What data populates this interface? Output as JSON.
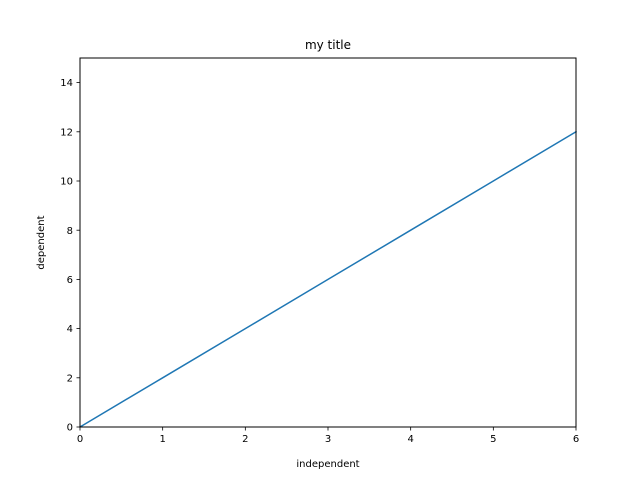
{
  "chart_data": {
    "type": "line",
    "title": "my title",
    "xlabel": "independent",
    "ylabel": "dependent",
    "xlim": [
      0,
      6
    ],
    "ylim": [
      0,
      15
    ],
    "xticks": [
      0,
      1,
      2,
      3,
      4,
      5,
      6
    ],
    "yticks": [
      0,
      2,
      4,
      6,
      8,
      10,
      12,
      14
    ],
    "grid": false,
    "series": [
      {
        "color": "#1f77b4",
        "x": [
          0,
          1,
          2,
          3,
          4,
          5,
          6
        ],
        "y": [
          0,
          2,
          4,
          6,
          8,
          10,
          12
        ]
      }
    ]
  }
}
